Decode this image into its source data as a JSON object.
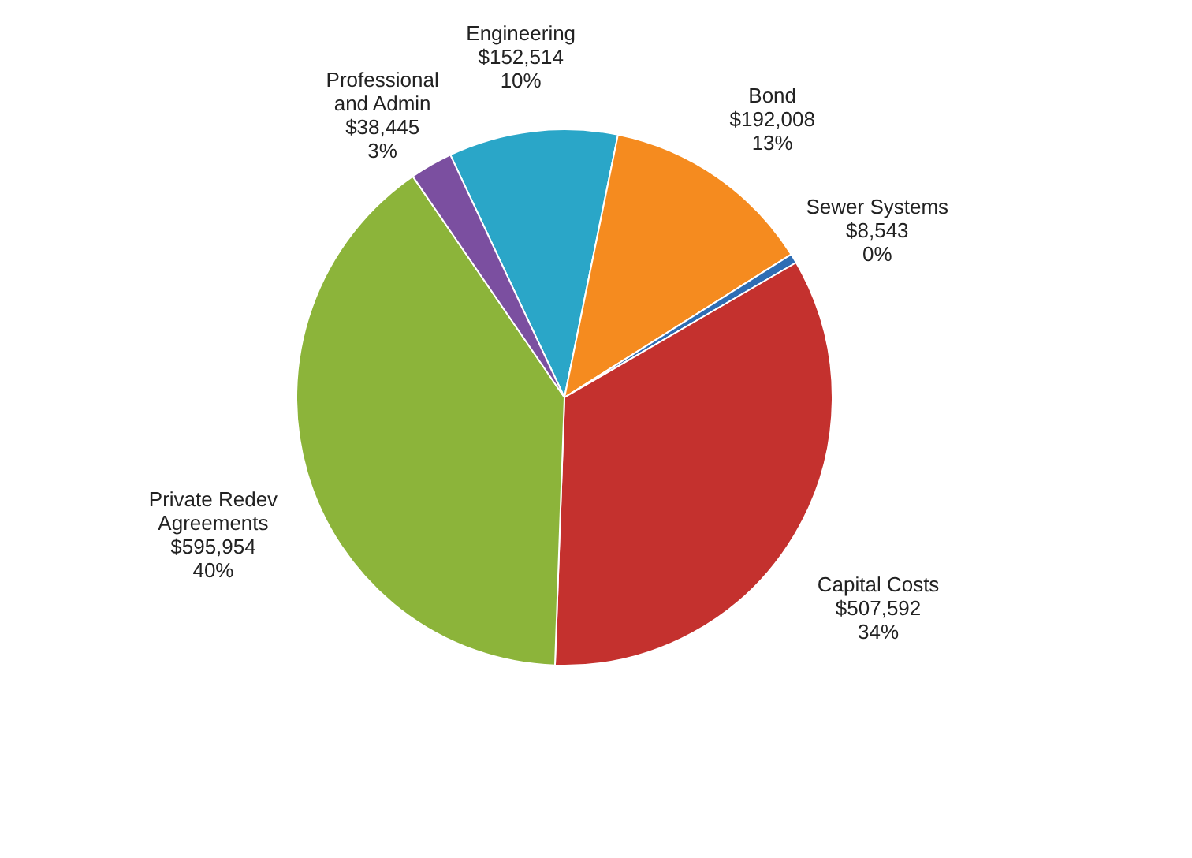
{
  "chart_data": {
    "type": "pie",
    "categories": [
      "Engineering",
      "Bond",
      "Sewer Systems",
      "Capital Costs",
      "Private Redev Agreements",
      "Professional and Admin"
    ],
    "values": [
      152514,
      192008,
      8543,
      507592,
      595954,
      38445
    ],
    "colors": [
      "#2aa6c8",
      "#f58b1f",
      "#2e6db4",
      "#c4312e",
      "#8cb43a",
      "#7b4fa0"
    ],
    "value_labels": [
      "$152,514\n10%",
      "$192,008\n13%",
      "$8,543\n0%",
      "$507,592\n34%",
      "$595,954\n40%",
      "$38,445\n3%"
    ],
    "legend": false
  }
}
